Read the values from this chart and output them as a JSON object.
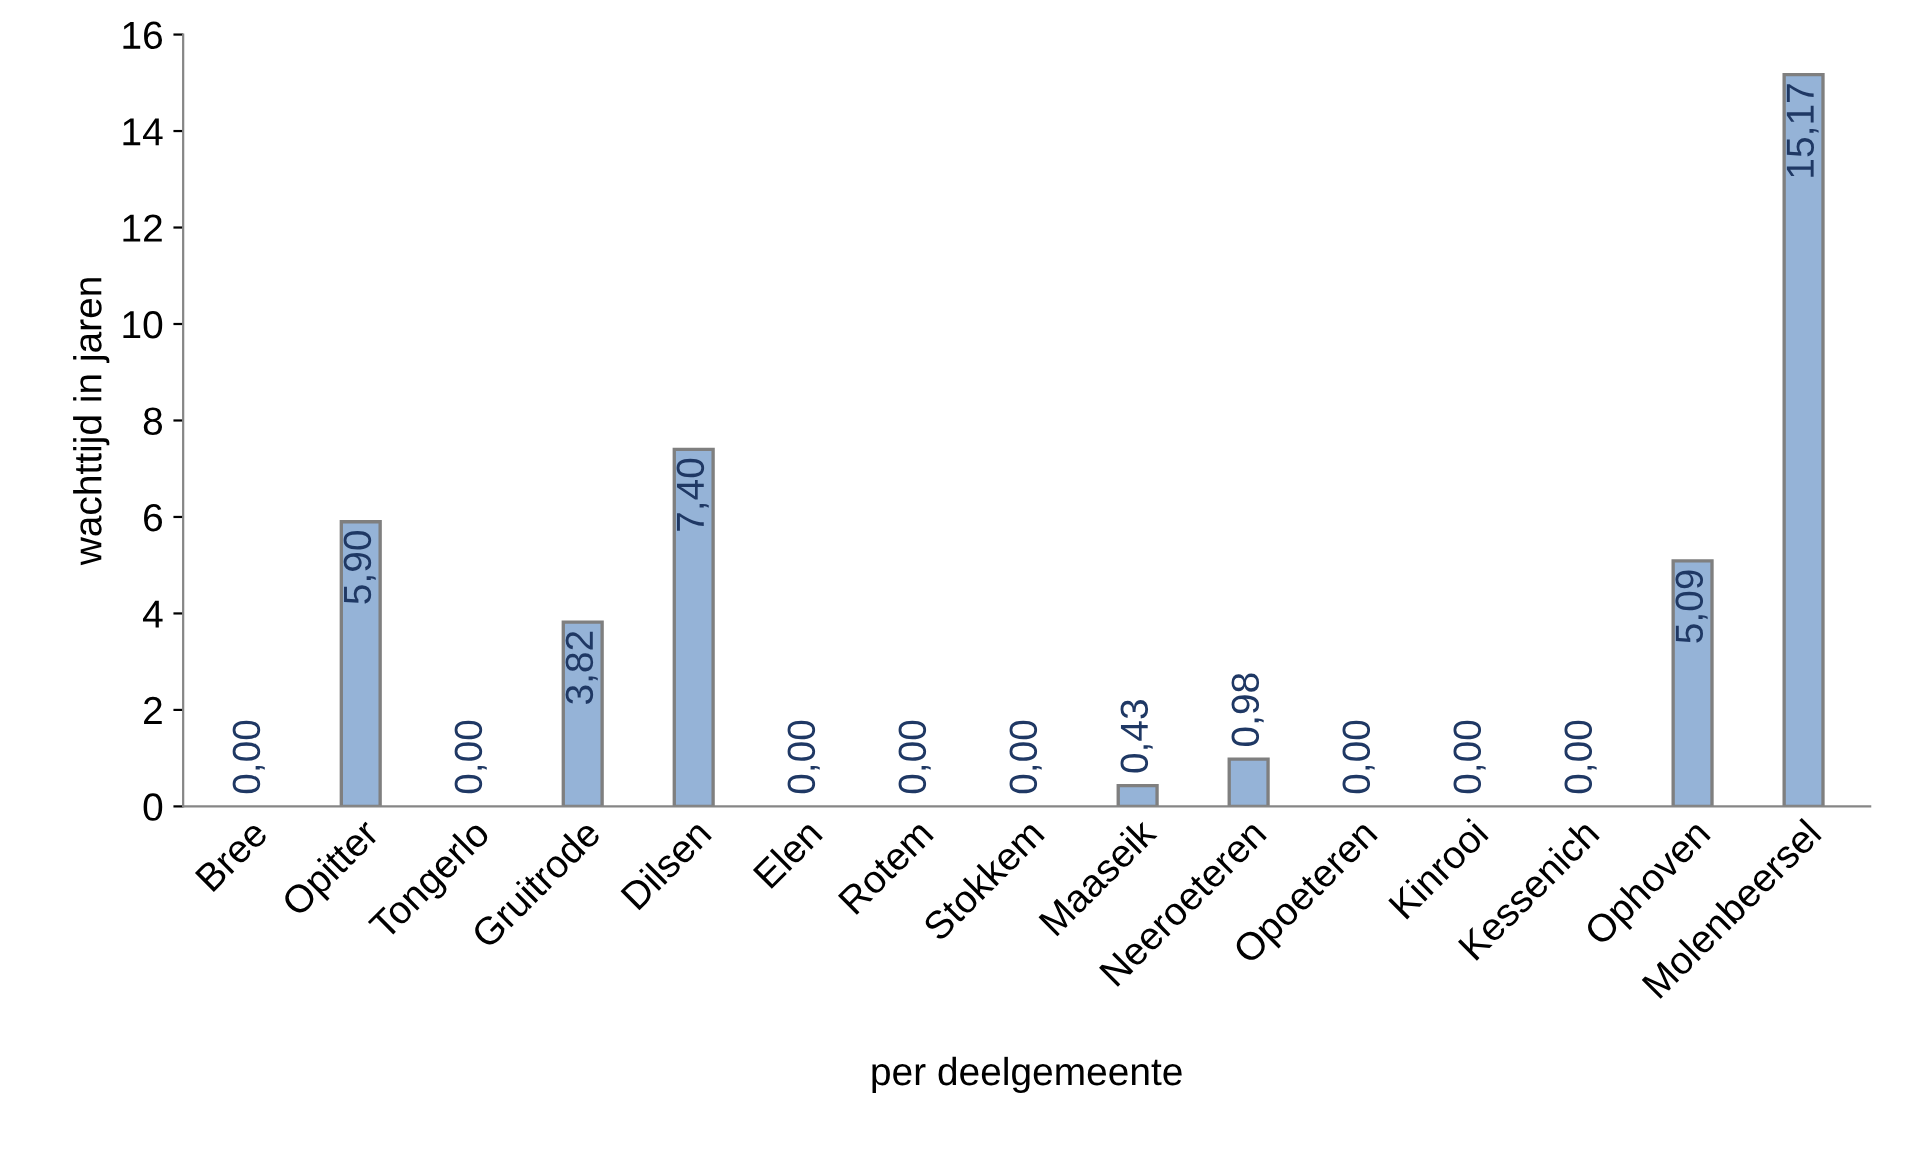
{
  "chart_data": {
    "type": "bar",
    "xlabel": "per deelgemeente",
    "ylabel": "wachttijd in jaren",
    "categories": [
      "Bree",
      "Opitter",
      "Tongerlo",
      "Gruitrode",
      "Dilsen",
      "Elen",
      "Rotem",
      "Stokkem",
      "Maaseik",
      "Neeroeteren",
      "Opoeteren",
      "Kinrooi",
      "Kessenich",
      "Ophoven",
      "Molenbeersel"
    ],
    "values": [
      0,
      5.9,
      0,
      3.82,
      7.4,
      0,
      0,
      0,
      0.43,
      0.98,
      0,
      0,
      0,
      5.09,
      15.17
    ],
    "value_labels": [
      "0,00",
      "5,90",
      "0,00",
      "3,82",
      "7,40",
      "0,00",
      "0,00",
      "0,00",
      "0,43",
      "0,98",
      "0,00",
      "0,00",
      "0,00",
      "5,09",
      "15,17"
    ],
    "color": "#95b3d7",
    "ylim": [
      0,
      16
    ],
    "yticks": [
      0,
      2,
      4,
      6,
      8,
      10,
      12,
      14,
      16
    ],
    "grid": false,
    "legend": false
  }
}
